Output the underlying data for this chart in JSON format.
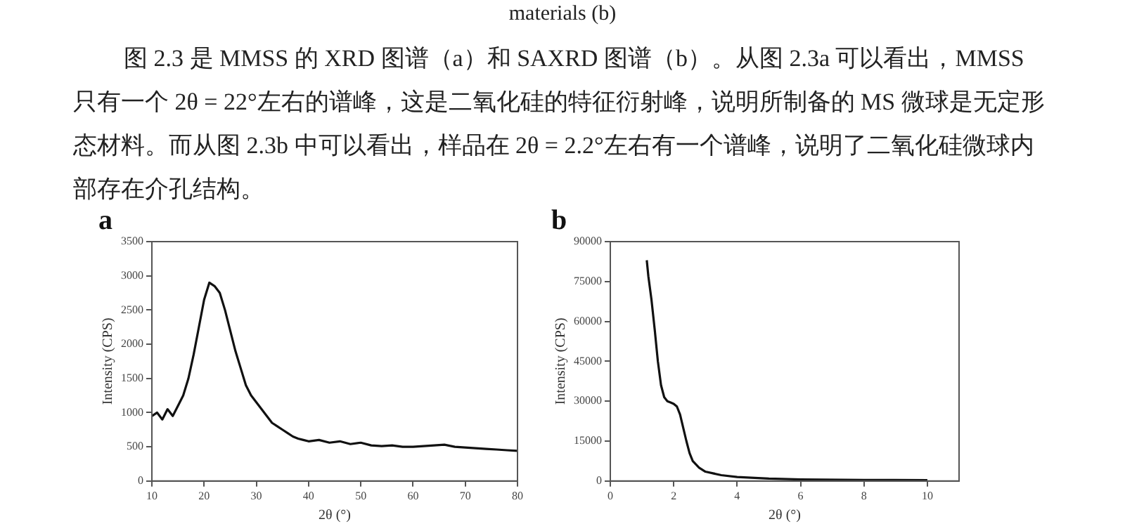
{
  "chart_data": [
    {
      "type": "line",
      "title": "a",
      "xlabel": "2θ (°)",
      "ylabel": "Intensity (CPS)",
      "marker": "none",
      "xlim": [
        10,
        80
      ],
      "ylim": [
        0,
        3500
      ],
      "xticks": [
        10,
        20,
        30,
        40,
        50,
        60,
        70,
        80
      ],
      "yticks": [
        0,
        500,
        1000,
        1500,
        2000,
        2500,
        3000,
        3500
      ],
      "annotations": [
        "materials (b)",
        "图 2.3 是 MMSS 的 XRD 图谱（a）和 SAXRD 图谱（b）。从图 2.3a 可以看出，MMSS 只有一个 2θ = 22°左右的谱峰，这是二氧化硅的特征衍射峰，说明所制备的 MS 微球是无定形态材料。而从图 2.3b 中可以看出，样品在 2θ = 2.2°左右有一个谱峰，说明了二氧化硅微球内部存在介孔结构。"
      ],
      "series": [
        {
          "color": "#111111",
          "x": [
            10,
            11,
            12,
            13,
            14,
            15,
            16,
            17,
            18,
            19,
            20,
            21,
            22,
            23,
            24,
            25,
            26,
            27,
            28,
            29,
            30,
            31,
            32,
            33,
            34,
            35,
            36,
            37,
            38,
            39,
            40,
            42,
            44,
            46,
            48,
            50,
            52,
            54,
            56,
            58,
            60,
            62,
            64,
            66,
            68,
            70,
            72,
            74,
            76,
            78,
            80
          ],
          "values": [
            950,
            1000,
            900,
            1050,
            950,
            1100,
            1250,
            1500,
            1850,
            2250,
            2650,
            2900,
            2850,
            2750,
            2500,
            2200,
            1900,
            1650,
            1400,
            1250,
            1150,
            1050,
            950,
            850,
            800,
            750,
            700,
            650,
            620,
            600,
            580,
            600,
            560,
            580,
            540,
            560,
            520,
            510,
            520,
            500,
            500,
            510,
            520,
            530,
            500,
            490,
            480,
            470,
            460,
            450,
            440
          ]
        }
      ]
    },
    {
      "type": "line",
      "title": "b",
      "xlabel": "2θ (°)",
      "ylabel": "Intensity (CPS)",
      "marker": "none",
      "xlim": [
        0,
        11
      ],
      "ylim": [
        0,
        90000
      ],
      "xticks": [
        0,
        2,
        4,
        6,
        8,
        10
      ],
      "yticks": [
        0,
        15000,
        30000,
        45000,
        60000,
        75000,
        90000
      ],
      "series": [
        {
          "color": "#111111",
          "x": [
            1.15,
            1.2,
            1.3,
            1.4,
            1.5,
            1.6,
            1.7,
            1.8,
            1.9,
            2.0,
            2.1,
            2.2,
            2.3,
            2.4,
            2.5,
            2.6,
            2.8,
            3.0,
            3.5,
            4,
            5,
            6,
            8,
            10
          ],
          "values": [
            83000,
            77000,
            68000,
            57000,
            45000,
            36000,
            31500,
            30000,
            29500,
            29000,
            28000,
            25000,
            20000,
            15000,
            10500,
            7500,
            5000,
            3500,
            2200,
            1500,
            900,
            600,
            400,
            300
          ]
        }
      ]
    }
  ]
}
